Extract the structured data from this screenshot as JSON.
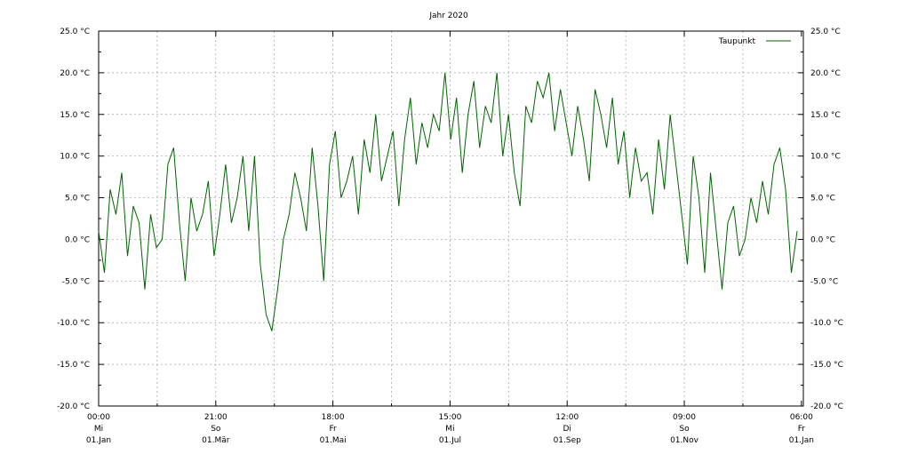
{
  "chart_data": {
    "type": "line",
    "title": "Jahr 2020",
    "xlabel": "",
    "ylabel": "",
    "ylim": [
      -20,
      25
    ],
    "xlim_days": [
      0,
      366.25
    ],
    "y_ticks": [
      -20,
      -15,
      -10,
      -5,
      0,
      5,
      10,
      15,
      20,
      25
    ],
    "y_tick_labels": [
      "-20.0 °C",
      "-15.0 °C",
      "-10.0 °C",
      "-5.0 °C",
      "0.0 °C",
      "5.0 °C",
      "10.0 °C",
      "15.0 °C",
      "20.0 °C",
      "25.0 °C"
    ],
    "x_ticks": [
      {
        "day": 0,
        "time": "00:00",
        "weekday": "Mi",
        "date": "01.Jan"
      },
      {
        "day": 60.875,
        "time": "21:00",
        "weekday": "So",
        "date": "01.Mär"
      },
      {
        "day": 121.75,
        "time": "18:00",
        "weekday": "Fr",
        "date": "01.Mai"
      },
      {
        "day": 182.625,
        "time": "15:00",
        "weekday": "Mi",
        "date": "01.Jul"
      },
      {
        "day": 243.5,
        "time": "12:00",
        "weekday": "Di",
        "date": "01.Sep"
      },
      {
        "day": 304.375,
        "time": "09:00",
        "weekday": "So",
        "date": "01.Nov"
      },
      {
        "day": 365.25,
        "time": "06:00",
        "weekday": "Fr",
        "date": "01.Jan"
      }
    ],
    "grid": true,
    "legend_position": "top-right",
    "series": [
      {
        "name": "Taupunkt",
        "color": "#006400",
        "x_start_day": 0,
        "x_step_days": 3,
        "values": [
          1,
          -4,
          6,
          3,
          8,
          -2,
          4,
          2,
          -6,
          3,
          -1,
          0,
          9,
          11,
          2,
          -5,
          5,
          1,
          3,
          7,
          -2,
          3,
          9,
          2,
          5,
          10,
          1,
          10,
          -3,
          -9,
          -11,
          -6,
          0,
          3,
          8,
          5,
          1,
          11,
          4,
          -5,
          9,
          13,
          5,
          7,
          10,
          3,
          12,
          8,
          15,
          7,
          10,
          13,
          4,
          12,
          17,
          9,
          14,
          11,
          15,
          13,
          20,
          12,
          17,
          8,
          15,
          19,
          11,
          16,
          14,
          20,
          10,
          15,
          8,
          4,
          16,
          14,
          19,
          17,
          20,
          13,
          18,
          14,
          10,
          16,
          12,
          7,
          18,
          15,
          11,
          17,
          9,
          13,
          5,
          11,
          7,
          8,
          3,
          12,
          6,
          15,
          9,
          3,
          -3,
          10,
          5,
          -4,
          8,
          1,
          -6,
          2,
          4,
          -2,
          0,
          5,
          2,
          7,
          3,
          9,
          11,
          6,
          -4,
          1
        ]
      }
    ]
  }
}
